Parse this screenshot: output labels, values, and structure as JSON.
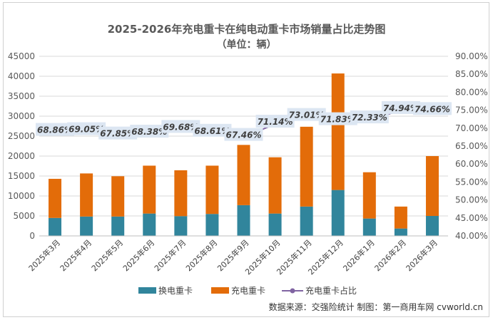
{
  "chart_data": {
    "type": "bar",
    "title": "2025-2026年充电重卡在纯电动重卡市场销量占比走势图",
    "subtitle": "（单位：辆）",
    "categories": [
      "2025年3月",
      "2025年4月",
      "2025年5月",
      "2025年6月",
      "2025年7月",
      "2025年8月",
      "2025年9月",
      "2025年10月",
      "2025年11月",
      "2025年12月",
      "2026年1月",
      "2026年2月",
      "2026年3月"
    ],
    "series": [
      {
        "name": "换电重卡",
        "color": "#31859c",
        "stack": "total",
        "values": [
          4500,
          4850,
          4850,
          5600,
          4950,
          5500,
          7700,
          5600,
          7350,
          11500,
          4350,
          1850,
          5000
        ]
      },
      {
        "name": "充电重卡",
        "color": "#e36c09",
        "stack": "total",
        "values": [
          9800,
          10800,
          10100,
          12000,
          11500,
          12100,
          15100,
          14100,
          20000,
          29200,
          11600,
          5500,
          15000
        ]
      },
      {
        "name": "充电重卡占比",
        "type": "line",
        "axis": "right",
        "color": "#8064a2",
        "values": [
          68.86,
          69.05,
          67.85,
          68.38,
          69.68,
          68.61,
          67.46,
          71.14,
          73.01,
          71.83,
          72.33,
          74.94,
          74.66
        ],
        "labels": [
          "68.86%",
          "69.05%",
          "67.85%",
          "68.38%",
          "69.68%",
          "68.61%",
          "67.46%",
          "71.14%",
          "73.01%",
          "71.83%",
          "72.33%",
          "74.94%",
          "74.66%"
        ]
      }
    ],
    "y_left": {
      "min": 0,
      "max": 45000,
      "step": 5000,
      "ticks": [
        "0",
        "5000",
        "10000",
        "15000",
        "20000",
        "25000",
        "30000",
        "35000",
        "40000",
        "45000"
      ]
    },
    "y_right": {
      "min": 40,
      "max": 90,
      "step": 5,
      "ticks": [
        "40.00%",
        "45.00%",
        "50.00%",
        "55.00%",
        "60.00%",
        "65.00%",
        "70.00%",
        "75.00%",
        "80.00%",
        "85.00%",
        "90.00%"
      ]
    },
    "legend": [
      "换电重卡",
      "充电重卡",
      "充电重卡占比"
    ],
    "legend_position": "bottom",
    "grid": true
  },
  "source_note": "数据来源：交强险统计  制图：第一商用车网 cvworld.cn",
  "colors": {
    "battery_swap": "#31859c",
    "charging": "#e36c09",
    "share_line": "#8064a2",
    "label_box": "#dce6f2",
    "grid": "#d9d9d9"
  }
}
